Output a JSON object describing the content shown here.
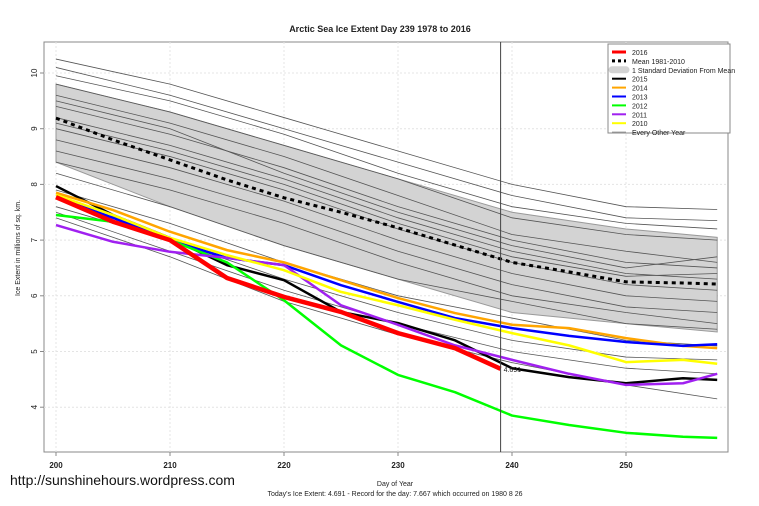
{
  "chart_data": {
    "type": "line",
    "title": "Arctic Sea Ice Extent Day 239 1978 to 2016",
    "xlabel": "Day of Year",
    "ylabel": "Ice Extent in millions of sq. km.",
    "xlim": [
      199,
      259
    ],
    "ylim": [
      3.2,
      10.55
    ],
    "xticks": [
      200,
      210,
      220,
      230,
      240,
      250
    ],
    "yticks": [
      4,
      5,
      6,
      7,
      8,
      9,
      10
    ],
    "grid": true,
    "current_day": 239,
    "current_label": "4.691",
    "legend_position": "top-right",
    "legend": [
      "2016",
      "Mean 1981-2010",
      "1 Standard Deviation From Mean",
      "2015",
      "2014",
      "2013",
      "2012",
      "2011",
      "2010",
      "Every Other Year"
    ],
    "x": [
      200,
      205,
      210,
      215,
      220,
      225,
      230,
      235,
      240,
      245,
      250,
      255,
      258
    ],
    "band": {
      "name": "1 Standard Deviation From Mean",
      "color": "#d3d3d3",
      "x": [
        200,
        210,
        220,
        230,
        240,
        250,
        258
      ],
      "upper": [
        9.8,
        9.3,
        8.7,
        8.1,
        7.5,
        7.2,
        7.05
      ],
      "lower": [
        8.4,
        7.6,
        6.9,
        6.3,
        5.7,
        5.5,
        5.35
      ]
    },
    "series": [
      {
        "name": "Mean 1981-2010",
        "color": "#000000",
        "dash": true,
        "values": [
          9.19,
          8.8,
          8.44,
          8.08,
          7.76,
          7.5,
          7.22,
          6.91,
          6.6,
          6.43,
          6.25,
          6.23,
          6.21
        ]
      },
      {
        "name": "2015",
        "color": "#000000",
        "values": [
          7.97,
          7.45,
          7.04,
          6.55,
          6.28,
          5.71,
          5.51,
          5.2,
          4.7,
          4.54,
          4.43,
          4.52,
          4.49
        ]
      },
      {
        "name": "2014",
        "color": "#ffa500",
        "values": [
          7.85,
          7.54,
          7.15,
          6.82,
          6.6,
          6.28,
          5.96,
          5.69,
          5.48,
          5.42,
          5.24,
          5.1,
          5.06
        ]
      },
      {
        "name": "2013",
        "color": "#0000ff",
        "values": [
          7.77,
          7.4,
          7.0,
          6.68,
          6.55,
          6.19,
          5.89,
          5.6,
          5.42,
          5.28,
          5.17,
          5.1,
          5.13
        ]
      },
      {
        "name": "2012",
        "color": "#00ff00",
        "values": [
          7.45,
          7.33,
          7.0,
          6.6,
          5.92,
          5.11,
          4.58,
          4.27,
          3.85,
          3.68,
          3.54,
          3.47,
          3.45
        ]
      },
      {
        "name": "2011",
        "color": "#a020f0",
        "values": [
          7.27,
          6.97,
          6.79,
          6.68,
          6.55,
          5.83,
          5.48,
          5.11,
          4.85,
          4.6,
          4.4,
          4.43,
          4.6
        ]
      },
      {
        "name": "2010",
        "color": "#ffff00",
        "values": [
          7.81,
          7.45,
          7.04,
          6.73,
          6.46,
          6.07,
          5.83,
          5.57,
          5.33,
          5.11,
          4.81,
          4.85,
          4.78
        ]
      },
      {
        "name": "2016",
        "color": "#ff0000",
        "thick": true,
        "x": [
          200,
          205,
          210,
          215,
          220,
          225,
          230,
          235,
          239
        ],
        "values": [
          7.77,
          7.33,
          7.0,
          6.32,
          5.98,
          5.71,
          5.33,
          5.06,
          4.69
        ]
      }
    ],
    "other_years": {
      "name": "Every Other Year",
      "color": "#555555",
      "x": [
        200,
        210,
        220,
        230,
        240,
        250,
        258
      ],
      "lines": [
        [
          10.25,
          9.8,
          9.2,
          8.6,
          8.0,
          7.6,
          7.55
        ],
        [
          10.1,
          9.6,
          9.0,
          8.4,
          7.8,
          7.4,
          7.35
        ],
        [
          9.95,
          9.5,
          8.9,
          8.2,
          7.6,
          7.3,
          7.2
        ],
        [
          9.8,
          9.3,
          8.7,
          8.1,
          7.4,
          7.1,
          7.0
        ],
        [
          9.6,
          9.1,
          8.5,
          7.8,
          7.1,
          6.8,
          6.6
        ],
        [
          9.4,
          8.9,
          8.3,
          7.6,
          7.0,
          6.6,
          6.5
        ],
        [
          9.2,
          8.7,
          8.1,
          7.4,
          6.8,
          6.4,
          6.3
        ],
        [
          9.0,
          8.5,
          7.9,
          7.2,
          6.6,
          6.2,
          6.1
        ],
        [
          8.8,
          8.3,
          7.7,
          7.0,
          6.4,
          6.0,
          5.9
        ],
        [
          8.6,
          8.1,
          7.5,
          6.8,
          6.2,
          5.8,
          5.7
        ],
        [
          8.4,
          7.9,
          7.3,
          6.6,
          6.0,
          5.7,
          5.5
        ],
        [
          8.2,
          7.6,
          6.9,
          6.3,
          5.9,
          5.5,
          5.4
        ],
        [
          7.9,
          7.3,
          6.6,
          6.0,
          5.6,
          5.2,
          5.1
        ],
        [
          7.6,
          7.0,
          6.3,
          5.7,
          5.2,
          4.9,
          4.85
        ],
        [
          7.5,
          6.8,
          6.1,
          5.5,
          5.0,
          4.7,
          4.6
        ],
        [
          7.4,
          6.7,
          5.9,
          5.3,
          4.8,
          4.4,
          4.15
        ],
        [
          9.1,
          8.6,
          8.0,
          7.3,
          6.7,
          6.35,
          6.4
        ],
        [
          9.5,
          9.0,
          8.2,
          7.5,
          6.9,
          6.5,
          6.7
        ]
      ]
    }
  },
  "footer": {
    "url": "http://sunshinehours.wordpress.com",
    "note": "Today's Ice Extent: 4.691  - Record for the day: 7.667 which occurred on 1980 8 26"
  }
}
